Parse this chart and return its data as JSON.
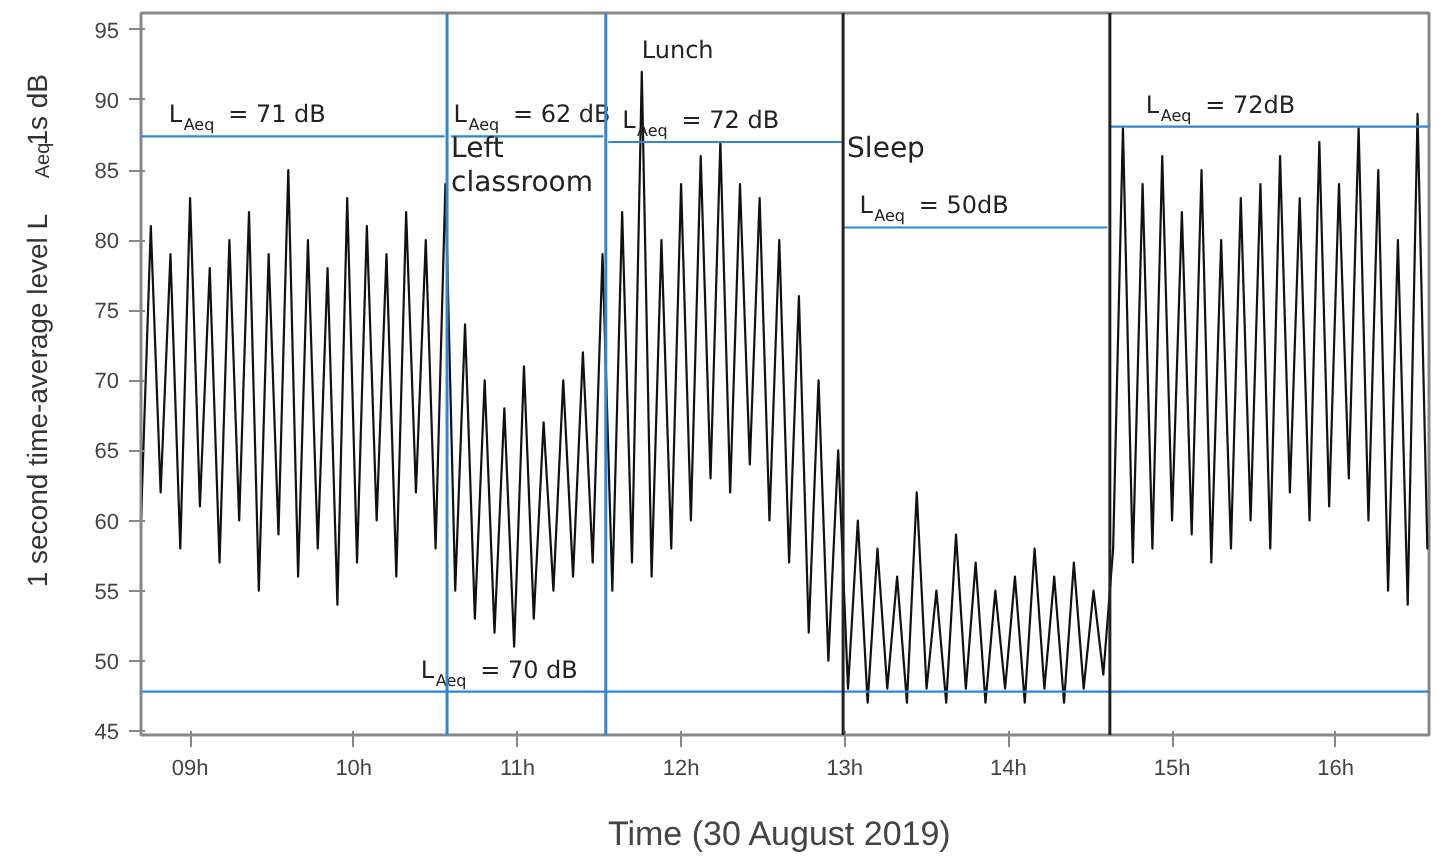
{
  "chart_data": {
    "type": "line",
    "xlabel": "Time  (30 August 2019)",
    "ylabel": "1 second  time-average level  L$_{Aeq}$1s  dB",
    "xlim": [
      8.7,
      16.57
    ],
    "ylim": [
      44.7,
      96.2
    ],
    "xticks": [
      {
        "value": 9,
        "label": "09h"
      },
      {
        "value": 10,
        "label": "10h"
      },
      {
        "value": 11,
        "label": "11h"
      },
      {
        "value": 12,
        "label": "12h"
      },
      {
        "value": 13,
        "label": "13h"
      },
      {
        "value": 14,
        "label": "14h"
      },
      {
        "value": 15,
        "label": "15h"
      },
      {
        "value": 16,
        "label": "16h"
      }
    ],
    "yticks": [
      45,
      50,
      55,
      60,
      65,
      70,
      75,
      80,
      85,
      90,
      95
    ],
    "grid": false,
    "marker": "none",
    "line_style": "solid",
    "series": [
      {
        "color": "#111111",
        "x": [
          8.7,
          8.76,
          8.82,
          8.88,
          8.94,
          9.0,
          9.06,
          9.12,
          9.18,
          9.24,
          9.3,
          9.36,
          9.42,
          9.48,
          9.54,
          9.6,
          9.66,
          9.72,
          9.78,
          9.84,
          9.9,
          9.96,
          10.02,
          10.08,
          10.14,
          10.2,
          10.26,
          10.32,
          10.38,
          10.44,
          10.5,
          10.56,
          10.62,
          10.68,
          10.74,
          10.8,
          10.86,
          10.92,
          10.98,
          11.04,
          11.1,
          11.16,
          11.22,
          11.28,
          11.34,
          11.4,
          11.46,
          11.52,
          11.58,
          11.64,
          11.7,
          11.76,
          11.82,
          11.88,
          11.94,
          12.0,
          12.06,
          12.12,
          12.18,
          12.24,
          12.3,
          12.36,
          12.42,
          12.48,
          12.54,
          12.6,
          12.66,
          12.72,
          12.78,
          12.84,
          12.9,
          12.96,
          13.02,
          13.08,
          13.14,
          13.2,
          13.26,
          13.32,
          13.38,
          13.44,
          13.5,
          13.56,
          13.62,
          13.68,
          13.74,
          13.8,
          13.86,
          13.92,
          13.98,
          14.04,
          14.1,
          14.16,
          14.22,
          14.28,
          14.34,
          14.4,
          14.46,
          14.52,
          14.58,
          14.64,
          14.7,
          14.76,
          14.82,
          14.88,
          14.94,
          15.0,
          15.06,
          15.12,
          15.18,
          15.24,
          15.3,
          15.36,
          15.42,
          15.48,
          15.54,
          15.6,
          15.66,
          15.72,
          15.78,
          15.84,
          15.9,
          15.96,
          16.02,
          16.08,
          16.14,
          16.2,
          16.26,
          16.32,
          16.38,
          16.44,
          16.5,
          16.56
        ],
        "values": [
          60,
          81,
          62,
          79,
          58,
          83,
          61,
          78,
          57,
          80,
          60,
          82,
          55,
          79,
          59,
          85,
          56,
          80,
          58,
          78,
          54,
          83,
          57,
          81,
          60,
          79,
          56,
          82,
          62,
          80,
          58,
          84,
          55,
          74,
          53,
          70,
          52,
          68,
          51,
          71,
          53,
          67,
          55,
          70,
          56,
          72,
          57,
          79,
          55,
          82,
          57,
          92,
          56,
          80,
          58,
          84,
          60,
          86,
          63,
          87,
          62,
          84,
          64,
          83,
          60,
          80,
          57,
          76,
          52,
          70,
          50,
          65,
          48,
          60,
          47,
          58,
          48,
          56,
          47,
          62,
          48,
          55,
          47,
          59,
          48,
          57,
          47,
          55,
          48,
          56,
          47,
          58,
          48,
          56,
          47,
          57,
          48,
          55,
          49,
          58,
          88,
          57,
          84,
          58,
          86,
          60,
          82,
          59,
          85,
          57,
          80,
          58,
          83,
          60,
          84,
          58,
          86,
          62,
          83,
          60,
          87,
          61,
          84,
          63,
          88,
          60,
          85,
          55,
          80,
          54,
          89,
          58
        ]
      },
      {
        "color": "#2e86d4",
        "x": [
          8.7,
          10.55
        ],
        "values": [
          87.4,
          87.4
        ]
      },
      {
        "color": "#2e86d4",
        "x": [
          10.6,
          11.52
        ],
        "values": [
          87.4,
          87.4
        ]
      },
      {
        "color": "#2e86d4",
        "x": [
          11.56,
          12.98
        ],
        "values": [
          87.0,
          87.0
        ]
      },
      {
        "color": "#2e86d4",
        "x": [
          13.0,
          14.6
        ],
        "values": [
          80.9,
          80.9
        ]
      },
      {
        "color": "#2e86d4",
        "x": [
          14.63,
          16.57
        ],
        "values": [
          88.1,
          88.1
        ]
      },
      {
        "color": "#2e86d4",
        "x": [
          8.7,
          16.57
        ],
        "values": [
          47.8,
          47.8
        ]
      }
    ],
    "ref_lines": [
      {
        "axis": "x",
        "value": 10.57,
        "color": "#2e86d4",
        "label": "Left classroom"
      },
      {
        "axis": "x",
        "value": 11.54,
        "color": "#2e86d4"
      },
      {
        "axis": "x",
        "value": 12.99,
        "color": "#222222",
        "label": "Sleep"
      },
      {
        "axis": "x",
        "value": 14.62,
        "color": "#222222"
      }
    ],
    "annotations": [
      {
        "text": "L$_{Aeq}$ = 71 dB",
        "x": 8.87,
        "y": 87.4
      },
      {
        "text": "L$_{Aeq}$ = 62 dB",
        "x": 10.61,
        "y": 87.4
      },
      {
        "text": "Lunch",
        "x": 11.76,
        "y": 92
      },
      {
        "text": "L$_{Aeq}$ = 72 dB",
        "x": 11.64,
        "y": 87.0
      },
      {
        "text": "L$_{Aeq}$ = 50dB",
        "x": 13.09,
        "y": 80.9
      },
      {
        "text": "L$_{Aeq}$ = 72dB",
        "x": 14.84,
        "y": 88.1
      },
      {
        "text": "L$_{Aeq}$ = 70 dB",
        "x": 10.41,
        "y": 47.8
      }
    ]
  }
}
